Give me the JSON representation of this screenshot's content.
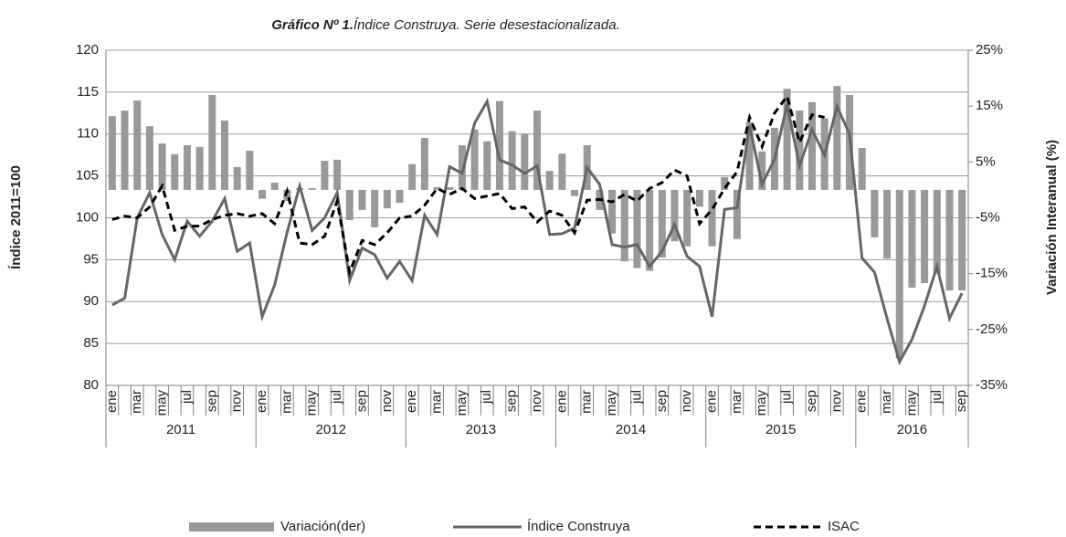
{
  "chart_data": {
    "type": "bar-line",
    "title_prefix": "Gráfico Nº 1.",
    "title": "Índice Construya. Serie desestacionalizada.",
    "y_label": "Índice 2011=100",
    "y2_label": "Variación Interanual (%)",
    "categories": [
      "ene",
      null,
      "mar",
      null,
      "may",
      null,
      "jul",
      null,
      "sep",
      null,
      "nov",
      null,
      "ene",
      null,
      "mar",
      null,
      "may",
      null,
      "jul",
      null,
      "sep",
      null,
      "nov",
      null,
      "ene",
      null,
      "mar",
      null,
      "may",
      null,
      "jul",
      null,
      "sep",
      null,
      "nov",
      null,
      "ene",
      null,
      "mar",
      null,
      "may",
      null,
      "jul",
      null,
      "sep",
      null,
      "nov",
      null,
      "ene",
      null,
      "mar",
      null,
      "may",
      null,
      "jul",
      null,
      "sep",
      null,
      "nov",
      null,
      "ene",
      null,
      "mar",
      null,
      "may",
      null,
      "jul",
      null,
      "sep"
    ],
    "years": [
      "2011",
      "2012",
      "2013",
      "2014",
      "2015",
      "2016"
    ],
    "ylim": [
      80,
      120
    ],
    "yticks": [
      80,
      85,
      90,
      95,
      100,
      105,
      110,
      115,
      120
    ],
    "y2lim": [
      -35,
      25
    ],
    "y2ticks": [
      {
        "value": -35,
        "label": "-35%"
      },
      {
        "value": -25,
        "label": "-25%"
      },
      {
        "value": -15,
        "label": "-15%"
      },
      {
        "value": -5,
        "label": "-5%"
      },
      {
        "value": 5,
        "label": "5%"
      },
      {
        "value": 15,
        "label": "15%"
      },
      {
        "value": 25,
        "label": "25%"
      }
    ],
    "grid": true,
    "series": [
      {
        "name": "Variación(der)",
        "type": "bar",
        "axis": "y2",
        "color": "#999999",
        "values": [
          13.2,
          14.2,
          16,
          11.4,
          8.3,
          6.4,
          8,
          7.7,
          17,
          12.4,
          4.1,
          7,
          -1.6,
          1.3,
          -2,
          0.3,
          0.3,
          5.2,
          5.4,
          -5.4,
          -3.6,
          -6.7,
          -3.3,
          -2.3,
          4.6,
          9.3,
          0.5,
          0.5,
          8,
          10.8,
          8.7,
          15.9,
          10.5,
          10.1,
          14.2,
          3.4,
          6.5,
          -1.1,
          8,
          -3.6,
          -7.8,
          -12.8,
          -14,
          -14.5,
          -12.1,
          -9.2,
          -10.1,
          -3,
          -10.1,
          2.3,
          -8.8,
          12.1,
          6.9,
          11.1,
          18.1,
          14.2,
          15.7,
          12.8,
          18.6,
          17,
          7.5,
          -8.5,
          -12.3,
          -30.2,
          -17.5,
          -16.7,
          -15,
          -18,
          -18
        ]
      },
      {
        "name": "Índice Construya",
        "type": "line",
        "color": "#666666",
        "values": [
          89.6,
          90.4,
          100,
          103,
          98,
          95,
          99.6,
          97.8,
          99.6,
          102.3,
          96,
          97,
          88.2,
          92,
          98.3,
          103.8,
          98.5,
          100,
          103,
          92.5,
          96.4,
          95.6,
          92.8,
          94.8,
          92.5,
          100.3,
          98,
          106.1,
          105.3,
          111.3,
          113.9,
          106.9,
          106.3,
          105.3,
          106.2,
          98,
          98.1,
          98.8,
          106,
          104,
          96.8,
          96.5,
          96.8,
          94.2,
          96,
          99.2,
          95.4,
          94.2,
          88.2,
          101,
          101.2,
          111,
          104,
          107,
          113.5,
          106.2,
          110.5,
          107.5,
          113.3,
          110,
          95.2,
          93.5,
          88,
          82.8,
          85.5,
          89.5,
          94.2,
          88,
          91
        ]
      },
      {
        "name": "ISAC",
        "type": "line",
        "dashed": true,
        "color": "#000000",
        "values": [
          99.8,
          100.2,
          100,
          101.3,
          103.8,
          98.5,
          99,
          99,
          99.8,
          100.3,
          100.5,
          100.2,
          100.5,
          99.3,
          103.2,
          97,
          96.8,
          97.8,
          102,
          93.5,
          97.3,
          96.8,
          98.2,
          100,
          100.2,
          101.5,
          103.5,
          102.8,
          103.5,
          102.3,
          102.6,
          102.9,
          101.1,
          101.3,
          99.5,
          100.8,
          100.3,
          98.2,
          102.1,
          102.2,
          101.9,
          102.8,
          102,
          103.5,
          104.2,
          105.7,
          105,
          99.3,
          101,
          103.5,
          105.5,
          112,
          108.5,
          112.5,
          114.5,
          109,
          112.3,
          112,
          null,
          null,
          null,
          null,
          null,
          null,
          null,
          null,
          null,
          null,
          null
        ]
      }
    ]
  }
}
